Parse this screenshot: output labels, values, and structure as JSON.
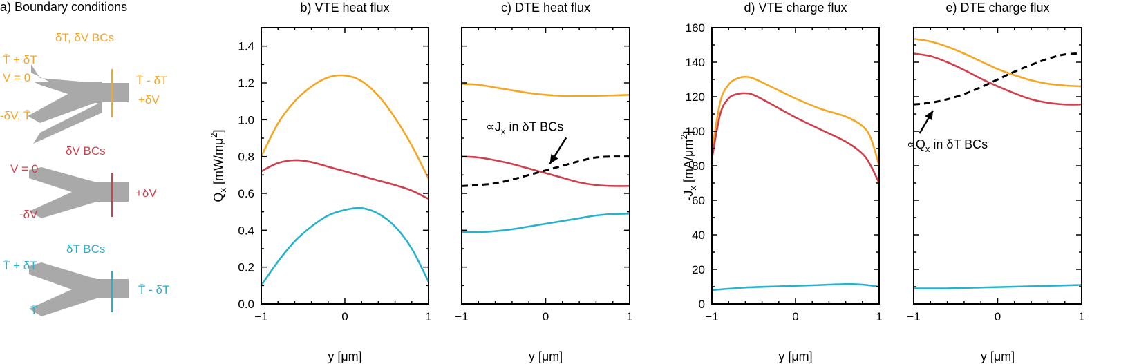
{
  "colors": {
    "orange": "#f5a623",
    "red": "#cf3f4c",
    "cyan": "#27b1cc",
    "gray": "#a9a9a9",
    "axis": "#000000"
  },
  "boundary_panel": {
    "title": "a) Boundary conditions",
    "diagrams": [
      {
        "name": "dT-dV",
        "color": "orange",
        "heading": "δT, δV BCs",
        "top_label": [
          "T̄ + δT",
          "V = 0"
        ],
        "bottom_label": [
          "-δV, T̄"
        ],
        "right_label": [
          "T̄ - δT",
          "+δV"
        ]
      },
      {
        "name": "dV",
        "color": "red",
        "heading": "δV BCs",
        "top_label": [
          "V = 0"
        ],
        "bottom_label": [
          "-δV"
        ],
        "right_label": [
          "+δV"
        ]
      },
      {
        "name": "dT",
        "color": "cyan",
        "heading": "δT BCs",
        "top_label": [
          "T̄ + δT"
        ],
        "bottom_label": [
          "T̄"
        ],
        "right_label": [
          "T̄ - δT"
        ]
      }
    ]
  },
  "chart_data": [
    {
      "id": "b",
      "type": "line",
      "title": "b) VTE heat flux",
      "xlabel": "y [μm]",
      "ylabel": "Qx [mW/mμ²]",
      "ylabel_main": "Q",
      "ylabel_sub": "x",
      "ylabel_rest": " [mW/mμ",
      "ylabel_sup": "2",
      "ylabel_end": "]",
      "xlim": [
        -1,
        1
      ],
      "ylim": [
        0,
        1.5
      ],
      "xticks": [
        -1,
        0,
        1
      ],
      "xtick_labels": [
        "−1",
        "0",
        "1"
      ],
      "yticks": [
        0,
        0.2,
        0.4,
        0.6,
        0.8,
        1.0,
        1.2,
        1.4
      ],
      "ytick_labels": [
        "0.0",
        "0.2",
        "0.4",
        "0.6",
        "0.8",
        "1.0",
        "1.2",
        "1.4"
      ],
      "series": [
        {
          "name": "δT, δV BCs",
          "color": "orange",
          "dashed": false,
          "x": [
            -1,
            -0.8,
            -0.6,
            -0.4,
            -0.2,
            0,
            0.2,
            0.4,
            0.6,
            0.8,
            1
          ],
          "y": [
            0.8,
            0.98,
            1.1,
            1.18,
            1.23,
            1.24,
            1.21,
            1.13,
            1.01,
            0.86,
            0.68
          ]
        },
        {
          "name": "δV BCs",
          "color": "red",
          "dashed": false,
          "x": [
            -1,
            -0.8,
            -0.6,
            -0.4,
            -0.2,
            0,
            0.2,
            0.4,
            0.6,
            0.8,
            1
          ],
          "y": [
            0.72,
            0.765,
            0.78,
            0.77,
            0.745,
            0.72,
            0.695,
            0.67,
            0.645,
            0.615,
            0.57
          ]
        },
        {
          "name": "δT BCs",
          "color": "cyan",
          "dashed": false,
          "x": [
            -1,
            -0.8,
            -0.6,
            -0.4,
            -0.2,
            0,
            0.2,
            0.4,
            0.6,
            0.8,
            1
          ],
          "y": [
            0.1,
            0.23,
            0.34,
            0.42,
            0.48,
            0.51,
            0.52,
            0.49,
            0.42,
            0.3,
            0.12
          ]
        }
      ]
    },
    {
      "id": "c",
      "type": "line",
      "title": "c) DTE heat flux",
      "xlabel": "y [μm]",
      "ylabel": "",
      "xlim": [
        -1,
        1
      ],
      "ylim": [
        0,
        1.5
      ],
      "xticks": [
        -1,
        0,
        1
      ],
      "xtick_labels": [
        "−1",
        "0",
        "1"
      ],
      "yticks": [
        0,
        0.2,
        0.4,
        0.6,
        0.8,
        1.0,
        1.2,
        1.4
      ],
      "ytick_labels": [],
      "annotation": {
        "text": "∝Jx in δT BCs",
        "main": "∝J",
        "sub": "x",
        "rest": " in δT BCs",
        "x": -0.25,
        "y": 0.94,
        "arrow_to": [
          0.05,
          0.76
        ]
      },
      "series": [
        {
          "name": "δT, δV BCs",
          "color": "orange",
          "dashed": false,
          "x": [
            -1,
            -0.8,
            -0.6,
            -0.4,
            -0.2,
            0,
            0.2,
            0.4,
            0.6,
            0.8,
            1
          ],
          "y": [
            1.195,
            1.19,
            1.175,
            1.16,
            1.145,
            1.135,
            1.13,
            1.13,
            1.13,
            1.132,
            1.135
          ]
        },
        {
          "name": "δV BCs",
          "color": "red",
          "dashed": false,
          "x": [
            -1,
            -0.8,
            -0.6,
            -0.4,
            -0.2,
            0,
            0.2,
            0.4,
            0.6,
            0.8,
            1
          ],
          "y": [
            0.8,
            0.795,
            0.78,
            0.76,
            0.735,
            0.71,
            0.685,
            0.66,
            0.645,
            0.64,
            0.64
          ]
        },
        {
          "name": "∝Jx in δT BCs",
          "color": "axis",
          "dashed": true,
          "x": [
            -1,
            -0.8,
            -0.6,
            -0.4,
            -0.2,
            0,
            0.2,
            0.4,
            0.6,
            0.8,
            1
          ],
          "y": [
            0.64,
            0.645,
            0.655,
            0.675,
            0.7,
            0.725,
            0.75,
            0.775,
            0.795,
            0.8,
            0.8
          ]
        },
        {
          "name": "δT BCs",
          "color": "cyan",
          "dashed": false,
          "x": [
            -1,
            -0.8,
            -0.6,
            -0.4,
            -0.2,
            0,
            0.2,
            0.4,
            0.6,
            0.8,
            1
          ],
          "y": [
            0.39,
            0.39,
            0.395,
            0.405,
            0.42,
            0.435,
            0.45,
            0.465,
            0.48,
            0.488,
            0.49
          ]
        }
      ]
    },
    {
      "id": "d",
      "type": "line",
      "title": "d) VTE charge flux",
      "xlabel": "y [μm]",
      "ylabel": "-Jx [mA/μm²]",
      "ylabel_main": "-J",
      "ylabel_sub": "x",
      "ylabel_rest": " [mA/μm",
      "ylabel_sup": "2",
      "ylabel_end": "]",
      "xlim": [
        -1,
        1
      ],
      "ylim": [
        0,
        160
      ],
      "xticks": [
        -1,
        0,
        1
      ],
      "xtick_labels": [
        "−1",
        "0",
        "1"
      ],
      "yticks": [
        0,
        20,
        40,
        60,
        80,
        100,
        120,
        140,
        160
      ],
      "ytick_labels": [
        "0",
        "20",
        "40",
        "60",
        "80",
        "100",
        "120",
        "140",
        "160"
      ],
      "series": [
        {
          "name": "δT, δV BCs",
          "color": "orange",
          "dashed": false,
          "x": [
            -1,
            -0.9,
            -0.8,
            -0.7,
            -0.6,
            -0.5,
            -0.3,
            0,
            0.3,
            0.6,
            0.8,
            0.9,
            1
          ],
          "y": [
            88,
            117,
            127,
            130.5,
            131.5,
            130.5,
            126,
            119,
            113,
            108.5,
            103,
            96,
            80
          ]
        },
        {
          "name": "δV BCs",
          "color": "red",
          "dashed": false,
          "x": [
            -1,
            -0.9,
            -0.8,
            -0.7,
            -0.6,
            -0.5,
            -0.3,
            0,
            0.3,
            0.6,
            0.8,
            0.9,
            1
          ],
          "y": [
            84,
            110,
            119,
            121.5,
            122,
            121,
            116,
            108,
            101,
            94,
            87,
            80,
            70
          ]
        },
        {
          "name": "δT BCs",
          "color": "cyan",
          "dashed": false,
          "x": [
            -1,
            -0.6,
            -0.2,
            0.2,
            0.6,
            0.8,
            1
          ],
          "y": [
            8,
            9.5,
            10.2,
            10.8,
            11.5,
            11.2,
            10
          ]
        }
      ]
    },
    {
      "id": "e",
      "type": "line",
      "title": "e) DTE charge flux",
      "xlabel": "y [μm]",
      "ylabel": "",
      "xlim": [
        -1,
        1
      ],
      "ylim": [
        0,
        160
      ],
      "xticks": [
        -1,
        0,
        1
      ],
      "xtick_labels": [
        "−1",
        "0",
        "1"
      ],
      "yticks": [
        0,
        20,
        40,
        60,
        80,
        100,
        120,
        140,
        160
      ],
      "ytick_labels": [],
      "annotation": {
        "text": "∝Qx in δT BCs",
        "main": "∝Q",
        "sub": "x",
        "rest": " in δT BCs",
        "x": -0.6,
        "y": 90,
        "arrow_to": [
          -0.77,
          112
        ]
      },
      "series": [
        {
          "name": "δT, δV BCs",
          "color": "orange",
          "dashed": false,
          "x": [
            -1,
            -0.8,
            -0.6,
            -0.4,
            -0.2,
            0,
            0.2,
            0.4,
            0.6,
            0.8,
            1
          ],
          "y": [
            153.5,
            152,
            149,
            145,
            140.5,
            136,
            132.5,
            129.5,
            127.5,
            126.5,
            126
          ]
        },
        {
          "name": "δV BCs",
          "color": "red",
          "dashed": false,
          "x": [
            -1,
            -0.8,
            -0.6,
            -0.4,
            -0.2,
            0,
            0.2,
            0.4,
            0.6,
            0.8,
            1
          ],
          "y": [
            145,
            143.5,
            140,
            135.5,
            130.5,
            126,
            122,
            118.5,
            116.5,
            115.5,
            115.5
          ]
        },
        {
          "name": "∝Qx in δT BCs",
          "color": "axis",
          "dashed": true,
          "x": [
            -1,
            -0.8,
            -0.6,
            -0.4,
            -0.2,
            0,
            0.2,
            0.4,
            0.6,
            0.8,
            1
          ],
          "y": [
            115.5,
            116.5,
            118.5,
            121.5,
            125.5,
            130,
            134.5,
            138.5,
            142,
            144.5,
            145
          ]
        },
        {
          "name": "δT BCs",
          "color": "cyan",
          "dashed": false,
          "x": [
            -1,
            -0.6,
            -0.2,
            0.2,
            0.6,
            1
          ],
          "y": [
            9,
            9,
            9.5,
            10,
            10.5,
            11
          ]
        }
      ]
    }
  ]
}
